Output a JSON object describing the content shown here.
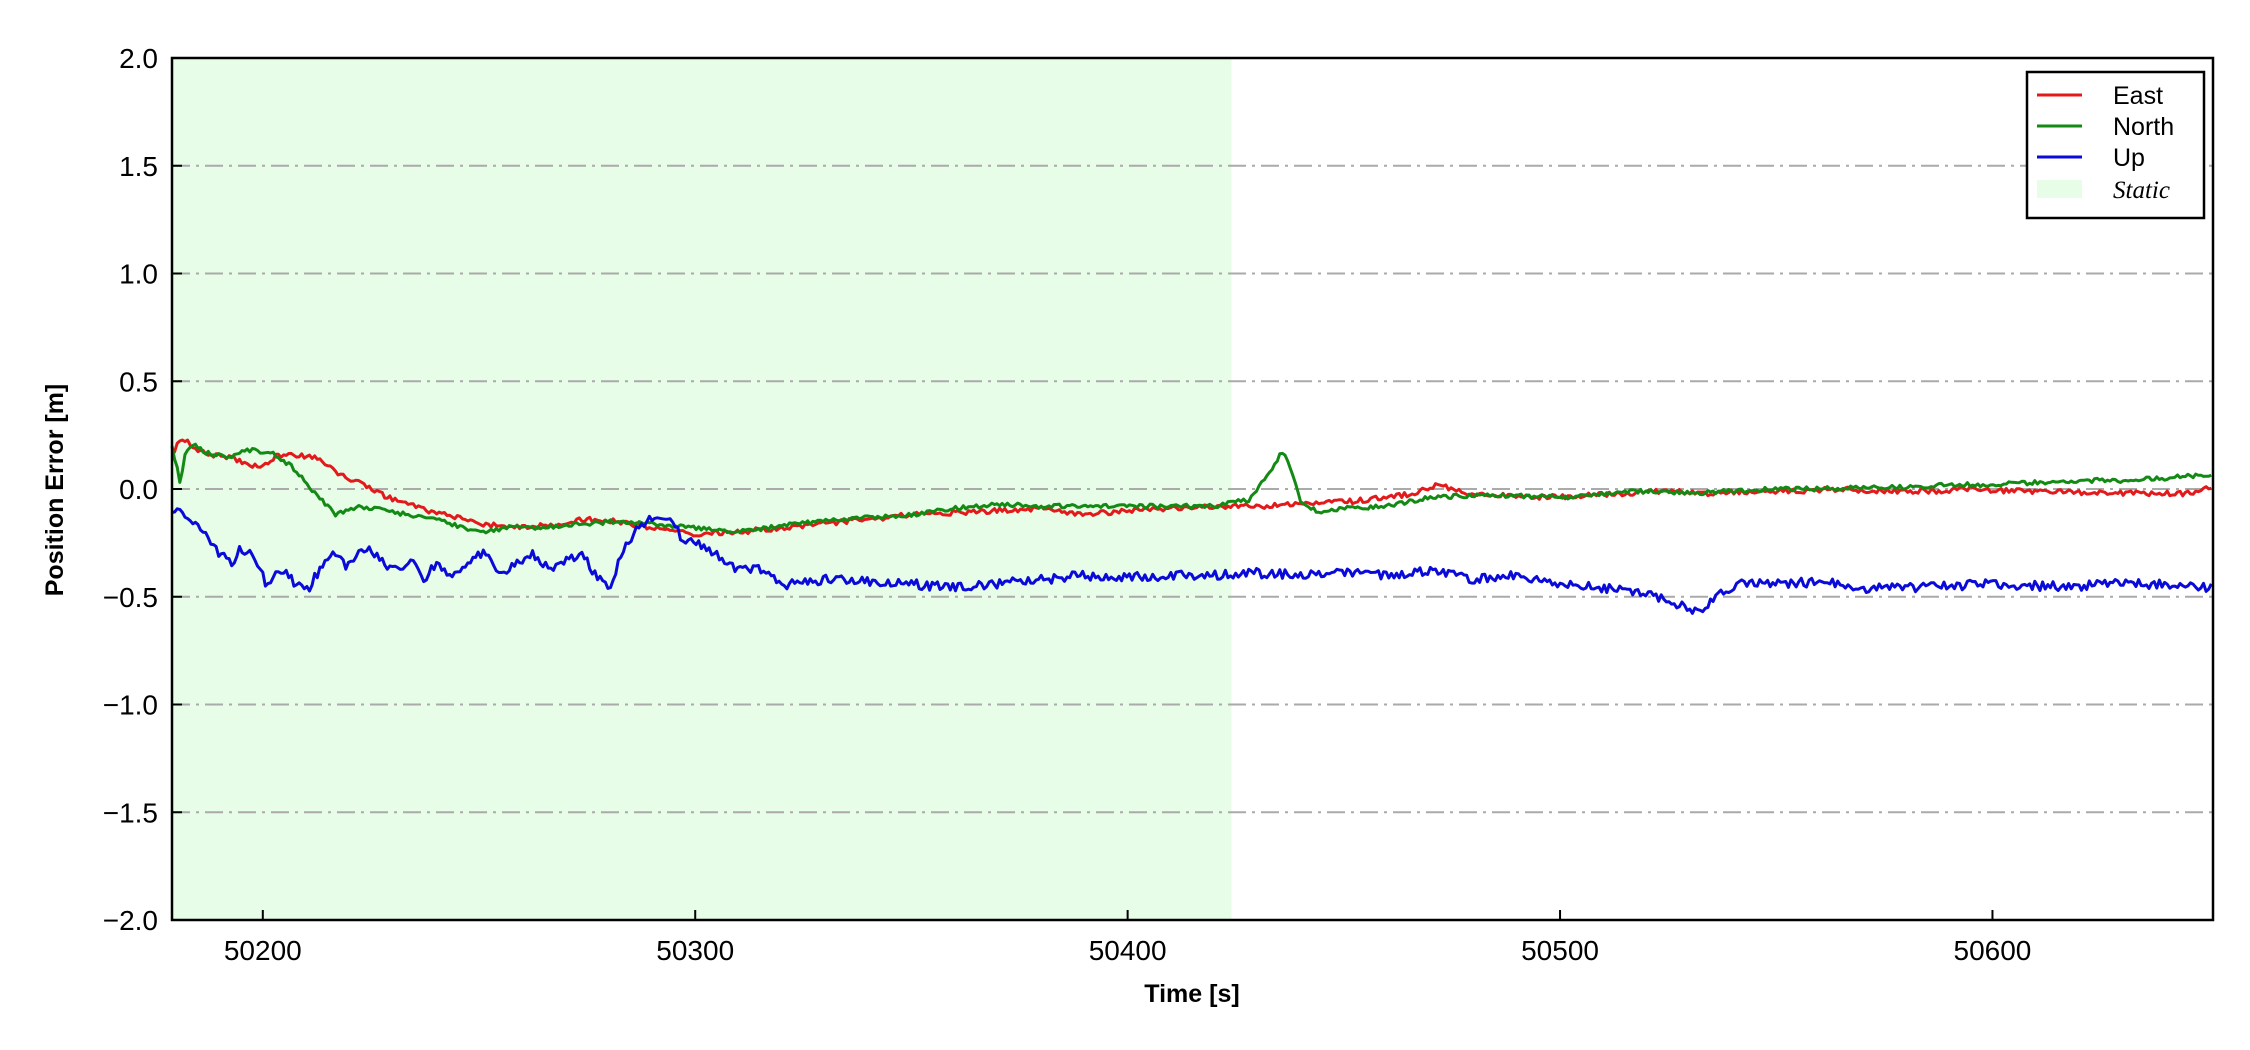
{
  "chart_data": {
    "type": "line",
    "xlabel": "Time [s]",
    "ylabel": "Position Error [m]",
    "xlim": [
      50179,
      50651
    ],
    "ylim": [
      -2.0,
      2.0
    ],
    "x_ticks": [
      50200,
      50300,
      50400,
      50500,
      50600
    ],
    "x_tick_labels": [
      "50200",
      "50300",
      "50400",
      "50500",
      "50600"
    ],
    "y_ticks": [
      -2.0,
      -1.5,
      -1.0,
      -0.5,
      0.0,
      0.5,
      1.0,
      1.5,
      2.0
    ],
    "y_tick_labels": [
      "−2.0",
      "−1.5",
      "−1.0",
      "−0.5",
      "0.0",
      "0.5",
      "1.0",
      "1.5",
      "2.0"
    ],
    "grid": "horizontal dash-dot",
    "legend_position": "top-right",
    "shaded_region": {
      "label": "Static",
      "x": [
        50179,
        50424
      ],
      "color": "#e8fde8"
    },
    "series": [
      {
        "name": "East",
        "color": "#e31a1c",
        "x": [
          50179,
          50181,
          50183,
          50185,
          50188,
          50192,
          50196,
          50200,
          50203,
          50207,
          50212,
          50217,
          50222,
          50228,
          50235,
          50242,
          50250,
          50258,
          50266,
          50274,
          50282,
          50290,
          50300,
          50310,
          50320,
          50330,
          50340,
          50350,
          50360,
          50370,
          50380,
          50390,
          50400,
          50410,
          50420,
          50430,
          50440,
          50450,
          50460,
          50466,
          50472,
          50478,
          50485,
          50495,
          50505,
          50515,
          50525,
          50535,
          50545,
          50555,
          50565,
          50575,
          50585,
          50595,
          50605,
          50615,
          50625,
          50635,
          50645,
          50651
        ],
        "values": [
          0.16,
          0.24,
          0.21,
          0.18,
          0.16,
          0.15,
          0.12,
          0.1,
          0.15,
          0.16,
          0.15,
          0.08,
          0.03,
          -0.03,
          -0.08,
          -0.12,
          -0.16,
          -0.18,
          -0.17,
          -0.14,
          -0.15,
          -0.18,
          -0.21,
          -0.2,
          -0.18,
          -0.16,
          -0.14,
          -0.12,
          -0.11,
          -0.1,
          -0.09,
          -0.12,
          -0.1,
          -0.09,
          -0.08,
          -0.08,
          -0.07,
          -0.06,
          -0.04,
          -0.02,
          0.02,
          -0.02,
          -0.03,
          -0.04,
          -0.03,
          -0.02,
          -0.01,
          -0.02,
          -0.01,
          -0.01,
          0.0,
          -0.01,
          -0.01,
          0.0,
          -0.01,
          -0.01,
          -0.02,
          -0.02,
          -0.02,
          0.01
        ]
      },
      {
        "name": "North",
        "color": "#138a13",
        "x": [
          50179,
          50181,
          50182,
          50184,
          50187,
          50192,
          50197,
          50202,
          50207,
          50212,
          50217,
          50222,
          50228,
          50234,
          50240,
          50246,
          50252,
          50258,
          50264,
          50270,
          50276,
          50282,
          50288,
          50294,
          50300,
          50310,
          50320,
          50330,
          50340,
          50350,
          50360,
          50370,
          50380,
          50390,
          50400,
          50410,
          50420,
          50428,
          50432,
          50436,
          50440,
          50444,
          50450,
          50460,
          50470,
          50480,
          50490,
          50500,
          50510,
          50520,
          50530,
          50540,
          50550,
          50560,
          50570,
          50580,
          50590,
          50600,
          50610,
          50620,
          50630,
          50640,
          50651
        ],
        "values": [
          0.2,
          0.02,
          0.16,
          0.21,
          0.17,
          0.15,
          0.18,
          0.17,
          0.1,
          -0.02,
          -0.12,
          -0.08,
          -0.1,
          -0.12,
          -0.14,
          -0.18,
          -0.2,
          -0.17,
          -0.18,
          -0.17,
          -0.16,
          -0.15,
          -0.16,
          -0.17,
          -0.18,
          -0.2,
          -0.17,
          -0.15,
          -0.13,
          -0.12,
          -0.09,
          -0.07,
          -0.08,
          -0.08,
          -0.08,
          -0.08,
          -0.08,
          -0.05,
          0.05,
          0.18,
          -0.05,
          -0.11,
          -0.09,
          -0.08,
          -0.04,
          -0.03,
          -0.03,
          -0.04,
          -0.02,
          -0.01,
          -0.02,
          -0.01,
          0.0,
          0.0,
          0.01,
          0.01,
          0.02,
          0.02,
          0.03,
          0.04,
          0.04,
          0.05,
          0.07
        ]
      },
      {
        "name": "Up",
        "color": "#0a0ad9",
        "x": [
          50179,
          50181,
          50184,
          50187,
          50190,
          50193,
          50195,
          50198,
          50201,
          50204,
          50207,
          50210,
          50213,
          50216,
          50219,
          50222,
          50225,
          50228,
          50231,
          50234,
          50237,
          50240,
          50243,
          50246,
          50249,
          50252,
          50255,
          50258,
          50262,
          50266,
          50270,
          50274,
          50277,
          50280,
          50283,
          50286,
          50288,
          50291,
          50294,
          50297,
          50300,
          50303,
          50306,
          50310,
          50315,
          50320,
          50330,
          50340,
          50350,
          50360,
          50370,
          50380,
          50390,
          50400,
          50410,
          50420,
          50430,
          50440,
          50450,
          50460,
          50470,
          50480,
          50490,
          50500,
          50510,
          50520,
          50528,
          50532,
          50536,
          50542,
          50550,
          50560,
          50570,
          50580,
          50590,
          50600,
          50610,
          50620,
          50630,
          50640,
          50651
        ],
        "values": [
          -0.12,
          -0.1,
          -0.15,
          -0.21,
          -0.3,
          -0.35,
          -0.27,
          -0.32,
          -0.45,
          -0.37,
          -0.43,
          -0.48,
          -0.38,
          -0.28,
          -0.36,
          -0.3,
          -0.28,
          -0.35,
          -0.38,
          -0.32,
          -0.43,
          -0.35,
          -0.4,
          -0.37,
          -0.32,
          -0.28,
          -0.4,
          -0.36,
          -0.3,
          -0.37,
          -0.34,
          -0.3,
          -0.4,
          -0.47,
          -0.3,
          -0.2,
          -0.17,
          -0.12,
          -0.14,
          -0.23,
          -0.25,
          -0.28,
          -0.32,
          -0.38,
          -0.37,
          -0.45,
          -0.42,
          -0.43,
          -0.44,
          -0.46,
          -0.44,
          -0.42,
          -0.4,
          -0.41,
          -0.4,
          -0.4,
          -0.39,
          -0.4,
          -0.38,
          -0.4,
          -0.38,
          -0.42,
          -0.4,
          -0.44,
          -0.46,
          -0.48,
          -0.54,
          -0.57,
          -0.5,
          -0.44,
          -0.44,
          -0.43,
          -0.46,
          -0.46,
          -0.45,
          -0.44,
          -0.45,
          -0.45,
          -0.44,
          -0.44,
          -0.46
        ]
      }
    ]
  }
}
